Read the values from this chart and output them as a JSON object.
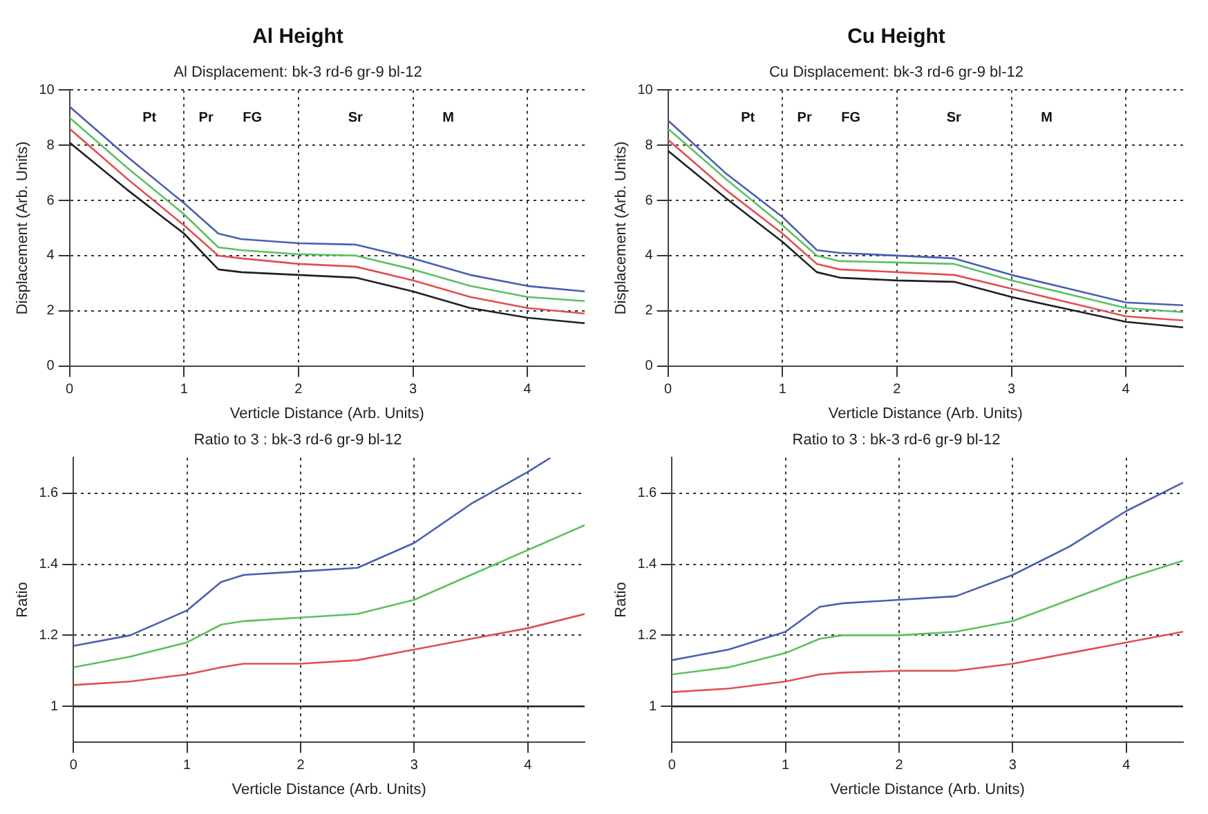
{
  "chart_data": [
    {
      "type": "line",
      "title": "Al Height",
      "subtitle": "Al Displacement: bk-3 rd-6 gr-9 bl-12",
      "xlabel": "Verticle Distance (Arb. Units)",
      "ylabel": "Displacement (Arb. Units)",
      "x": [
        0,
        0.5,
        1,
        1.3,
        1.5,
        2,
        2.5,
        3,
        3.5,
        4,
        4.5
      ],
      "xlim": [
        0,
        4.5
      ],
      "xticks": [
        0,
        1,
        2,
        3,
        4
      ],
      "ylim": [
        0,
        10
      ],
      "yticks": [
        0,
        2,
        4,
        6,
        8,
        10
      ],
      "grid": true,
      "legend": false,
      "annotations": [
        "Pt",
        "Pr",
        "FG",
        "Sr",
        "M"
      ],
      "series": [
        {
          "color": "#202020",
          "values": [
            8.1,
            6.4,
            4.8,
            3.5,
            3.4,
            3.3,
            3.2,
            2.7,
            2.1,
            1.75,
            1.55
          ]
        },
        {
          "color": "#e05050",
          "values": [
            8.6,
            6.8,
            5.1,
            4.0,
            3.9,
            3.7,
            3.6,
            3.1,
            2.5,
            2.1,
            1.9
          ]
        },
        {
          "color": "#5cc060",
          "values": [
            9.0,
            7.2,
            5.5,
            4.3,
            4.2,
            4.05,
            4.0,
            3.5,
            2.9,
            2.5,
            2.35
          ]
        },
        {
          "color": "#4a5fb0",
          "values": [
            9.4,
            7.6,
            5.9,
            4.8,
            4.6,
            4.45,
            4.4,
            3.9,
            3.3,
            2.9,
            2.7
          ]
        }
      ]
    },
    {
      "type": "line",
      "title": "Cu Height",
      "subtitle": "Cu Displacement: bk-3 rd-6 gr-9 bl-12",
      "xlabel": "Verticle Distance (Arb. Units)",
      "ylabel": "Displacement (Arb. Units)",
      "x": [
        0,
        0.5,
        1,
        1.3,
        1.5,
        2,
        2.5,
        3,
        3.5,
        4,
        4.5
      ],
      "xlim": [
        0,
        4.5
      ],
      "xticks": [
        0,
        1,
        2,
        3,
        4
      ],
      "ylim": [
        0,
        10
      ],
      "yticks": [
        0,
        2,
        4,
        6,
        8,
        10
      ],
      "grid": true,
      "legend": false,
      "annotations": [
        "Pt",
        "Pr",
        "FG",
        "Sr",
        "M"
      ],
      "series": [
        {
          "color": "#202020",
          "values": [
            7.8,
            6.1,
            4.5,
            3.4,
            3.2,
            3.1,
            3.05,
            2.5,
            2.05,
            1.6,
            1.4
          ]
        },
        {
          "color": "#e05050",
          "values": [
            8.2,
            6.4,
            4.8,
            3.7,
            3.5,
            3.4,
            3.3,
            2.8,
            2.3,
            1.8,
            1.65
          ]
        },
        {
          "color": "#5cc060",
          "values": [
            8.6,
            6.8,
            5.1,
            4.0,
            3.8,
            3.75,
            3.7,
            3.1,
            2.6,
            2.1,
            1.95
          ]
        },
        {
          "color": "#4a5fb0",
          "values": [
            8.9,
            7.0,
            5.4,
            4.2,
            4.1,
            4.0,
            3.9,
            3.3,
            2.8,
            2.3,
            2.2
          ]
        }
      ]
    },
    {
      "type": "line",
      "subtitle": "Ratio to 3 : bk-3 rd-6 gr-9 bl-12",
      "xlabel": "Verticle Distance (Arb. Units)",
      "ylabel": "Ratio",
      "x": [
        0,
        0.5,
        1,
        1.3,
        1.5,
        2,
        2.5,
        3,
        3.5,
        4,
        4.5
      ],
      "xlim": [
        0,
        4.5
      ],
      "xticks": [
        0,
        1,
        2,
        3,
        4
      ],
      "ylim": [
        0.9,
        1.7
      ],
      "yticks": [
        {
          "value": 1,
          "label": "1"
        },
        1.2,
        1.4,
        1.6
      ],
      "grid": true,
      "legend": false,
      "series": [
        {
          "color": "#202020",
          "values": [
            1,
            1,
            1,
            1,
            1,
            1,
            1,
            1,
            1,
            1,
            1
          ]
        },
        {
          "color": "#e05050",
          "values": [
            1.06,
            1.07,
            1.09,
            1.11,
            1.12,
            1.12,
            1.13,
            1.16,
            1.19,
            1.22,
            1.26
          ]
        },
        {
          "color": "#5cc060",
          "values": [
            1.11,
            1.14,
            1.18,
            1.23,
            1.24,
            1.25,
            1.26,
            1.3,
            1.37,
            1.44,
            1.51
          ]
        },
        {
          "color": "#4a5fb0",
          "x": [
            0,
            0.5,
            1,
            1.3,
            1.5,
            2,
            2.5,
            3,
            3.5,
            4,
            4.2
          ],
          "values": [
            1.17,
            1.2,
            1.27,
            1.35,
            1.37,
            1.38,
            1.39,
            1.46,
            1.57,
            1.66,
            1.7
          ]
        }
      ]
    },
    {
      "type": "line",
      "subtitle": "Ratio to 3 : bk-3 rd-6 gr-9 bl-12",
      "xlabel": "Verticle Distance (Arb. Units)",
      "ylabel": "Ratio",
      "x": [
        0,
        0.5,
        1,
        1.3,
        1.5,
        2,
        2.5,
        3,
        3.5,
        4,
        4.5
      ],
      "xlim": [
        0,
        4.5
      ],
      "xticks": [
        0,
        1,
        2,
        3,
        4
      ],
      "ylim": [
        0.9,
        1.7
      ],
      "yticks": [
        {
          "value": 1,
          "label": "1"
        },
        1.2,
        1.4,
        1.6
      ],
      "grid": true,
      "legend": false,
      "series": [
        {
          "color": "#202020",
          "values": [
            1,
            1,
            1,
            1,
            1,
            1,
            1,
            1,
            1,
            1,
            1
          ]
        },
        {
          "color": "#e05050",
          "values": [
            1.04,
            1.05,
            1.07,
            1.09,
            1.095,
            1.1,
            1.1,
            1.12,
            1.15,
            1.18,
            1.21
          ]
        },
        {
          "color": "#5cc060",
          "values": [
            1.09,
            1.11,
            1.15,
            1.19,
            1.2,
            1.2,
            1.21,
            1.24,
            1.3,
            1.36,
            1.41
          ]
        },
        {
          "color": "#4a5fb0",
          "values": [
            1.13,
            1.16,
            1.21,
            1.28,
            1.29,
            1.3,
            1.31,
            1.37,
            1.45,
            1.55,
            1.63
          ]
        }
      ]
    }
  ]
}
